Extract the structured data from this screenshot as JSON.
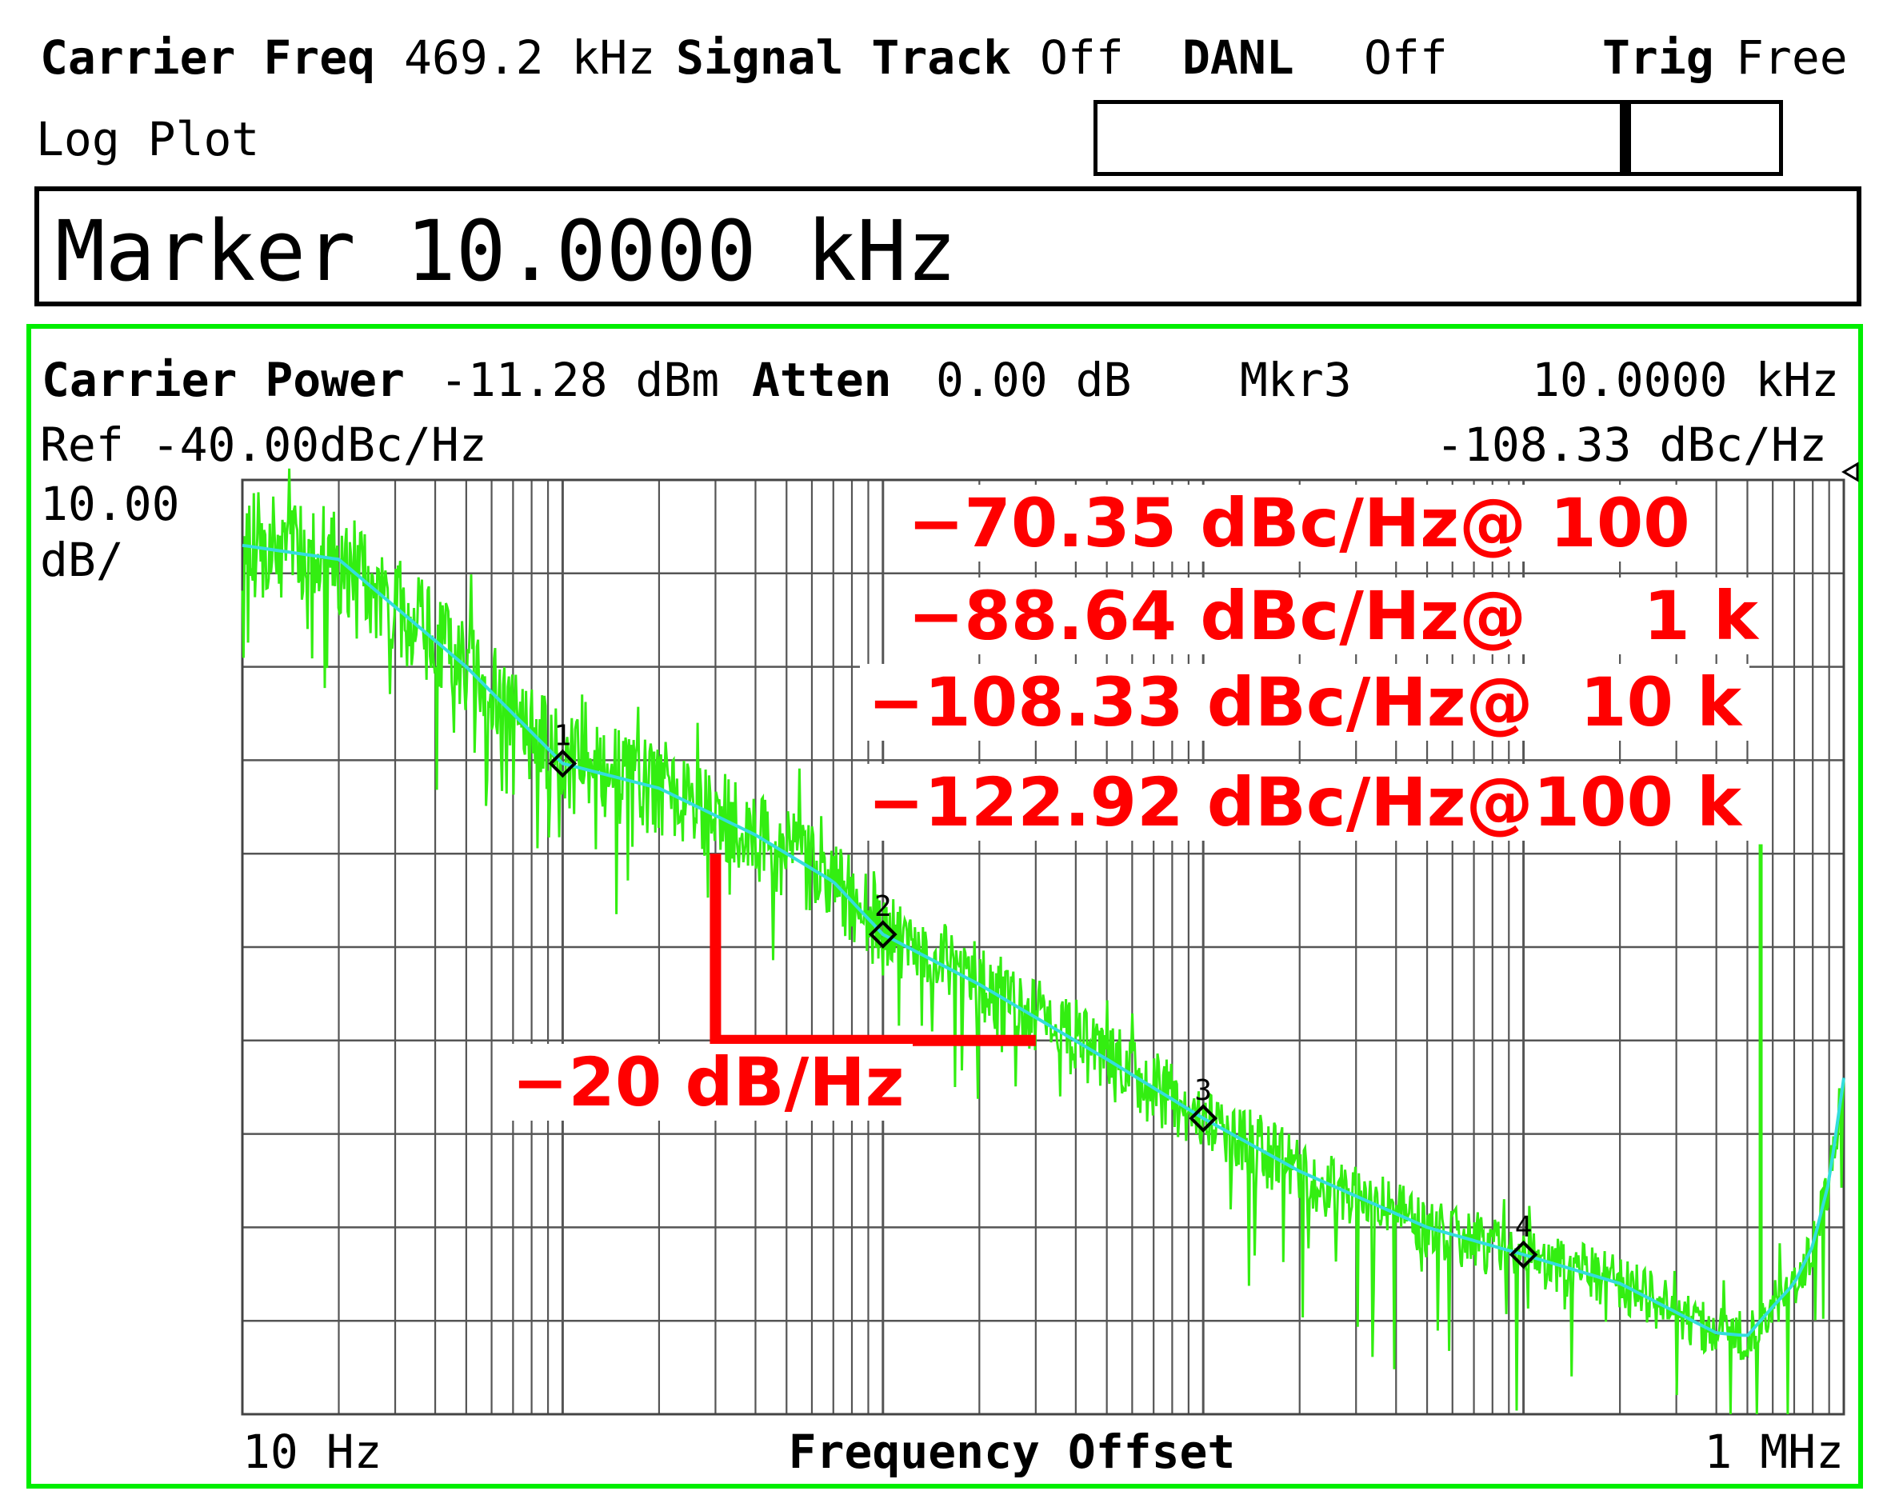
{
  "header": {
    "carrier_freq_label": "Carrier Freq",
    "carrier_freq_value": "469.2 kHz",
    "signal_track_label": "Signal Track",
    "signal_track_value": "Off",
    "danl_label": "DANL",
    "danl_value": "Off",
    "trig_label": "Trig",
    "trig_value": "Free",
    "mode_label": "Log Plot"
  },
  "marker_box": {
    "text": "Marker 10.0000 kHz"
  },
  "panel": {
    "carrier_power_label": "Carrier Power",
    "carrier_power_value": "-11.28 dBm",
    "atten_label": "Atten",
    "atten_value": "0.00 dB",
    "mkr_label": "Mkr3",
    "mkr_freq": "10.0000 kHz",
    "ref_label": "Ref -40.00dBc/Hz",
    "mkr_value": "-108.33 dBc/Hz",
    "scale_value": "10.00",
    "scale_unit": "dB/"
  },
  "colors": {
    "frame_green": "#00ee00",
    "trace_green": "#33ee11",
    "trace_cyan": "#33dddd",
    "annotation_red": "#ff0000",
    "grid": "#555555"
  },
  "annotations": {
    "lines": [
      "−70.35 dBc/Hz@ 100",
      "−88.64 dBc/Hz@     1 k",
      "−108.33 dBc/Hz@  10 k",
      "−122.92 dBc/Hz@100 k"
    ],
    "slope": "−20 dB/Hz"
  },
  "chart_data": {
    "type": "line",
    "title": "",
    "xlabel": "Frequency Offset",
    "ylabel": "",
    "x_scale": "log",
    "xlim": [
      10,
      1000000
    ],
    "ylim": [
      -140,
      -40
    ],
    "x_tick_labels": [
      "10 Hz",
      "1 MHz"
    ],
    "grid": true,
    "series": [
      {
        "color": "#33dddd",
        "x": [
          10,
          20,
          50,
          100,
          200,
          400,
          700,
          1000,
          2000,
          5000,
          10000,
          20000,
          50000,
          100000,
          200000,
          400000,
          500000,
          600000,
          700000,
          800000,
          900000,
          1000000
        ],
        "y": [
          -47,
          -48.5,
          -60,
          -70.35,
          -73,
          -78,
          -83,
          -88.64,
          -94,
          -102,
          -108.33,
          -114,
          -120,
          -122.92,
          -126,
          -131.3,
          -131.6,
          -128.5,
          -126,
          -122,
          -115,
          -104
        ]
      }
    ],
    "markers": [
      {
        "label": "1",
        "x": 100,
        "y": -70.35
      },
      {
        "label": "2",
        "x": 1000,
        "y": -88.64
      },
      {
        "label": "3",
        "x": 10000,
        "y": -108.33
      },
      {
        "label": "4",
        "x": 100000,
        "y": -122.92
      }
    ]
  }
}
